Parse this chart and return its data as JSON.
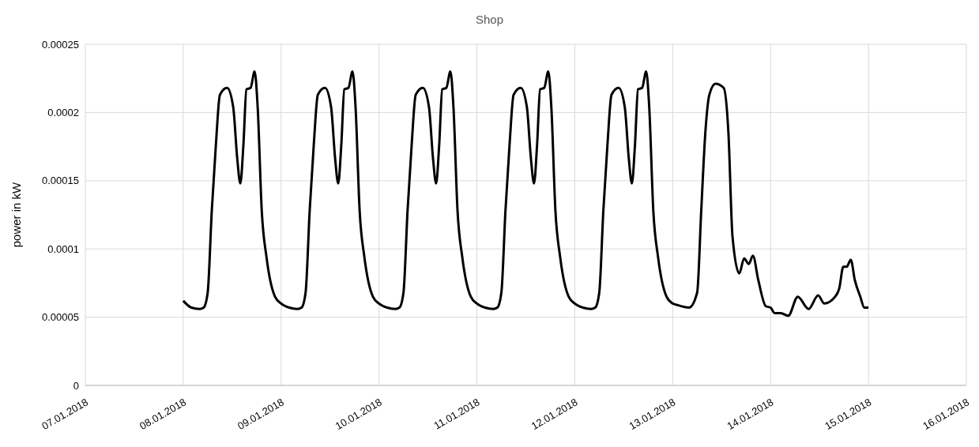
{
  "chart_data": {
    "type": "line",
    "title": "Shop",
    "ylabel": "power in kW",
    "x": [
      "2018-01-08T00:00",
      "2018-01-08T02:00",
      "2018-01-08T04:00",
      "2018-01-08T05:00",
      "2018-01-08T06:00",
      "2018-01-08T07:00",
      "2018-01-08T08:00",
      "2018-01-08T09:00",
      "2018-01-08T10:45",
      "2018-01-08T12:15",
      "2018-01-08T13:15",
      "2018-01-08T14:00",
      "2018-01-08T14:45",
      "2018-01-08T15:30",
      "2018-01-08T16:30",
      "2018-01-08T17:30",
      "2018-01-08T18:15",
      "2018-01-08T19:15",
      "2018-01-08T20:25",
      "2018-01-08T22:30",
      "2018-01-09T00:00",
      "2018-01-09T02:00",
      "2018-01-09T04:00",
      "2018-01-09T05:00",
      "2018-01-09T06:00",
      "2018-01-09T07:00",
      "2018-01-09T08:00",
      "2018-01-09T09:00",
      "2018-01-09T10:45",
      "2018-01-09T12:15",
      "2018-01-09T13:15",
      "2018-01-09T14:00",
      "2018-01-09T14:45",
      "2018-01-09T15:30",
      "2018-01-09T16:30",
      "2018-01-09T17:30",
      "2018-01-09T18:15",
      "2018-01-09T19:15",
      "2018-01-09T20:25",
      "2018-01-09T22:30",
      "2018-01-10T00:00",
      "2018-01-10T02:00",
      "2018-01-10T04:00",
      "2018-01-10T05:00",
      "2018-01-10T06:00",
      "2018-01-10T07:00",
      "2018-01-10T08:00",
      "2018-01-10T09:00",
      "2018-01-10T10:45",
      "2018-01-10T12:15",
      "2018-01-10T13:15",
      "2018-01-10T14:00",
      "2018-01-10T14:45",
      "2018-01-10T15:30",
      "2018-01-10T16:30",
      "2018-01-10T17:30",
      "2018-01-10T18:15",
      "2018-01-10T19:15",
      "2018-01-10T20:25",
      "2018-01-10T22:30",
      "2018-01-11T00:00",
      "2018-01-11T02:00",
      "2018-01-11T04:00",
      "2018-01-11T05:00",
      "2018-01-11T06:00",
      "2018-01-11T07:00",
      "2018-01-11T08:00",
      "2018-01-11T09:00",
      "2018-01-11T10:45",
      "2018-01-11T12:15",
      "2018-01-11T13:15",
      "2018-01-11T14:00",
      "2018-01-11T14:45",
      "2018-01-11T15:30",
      "2018-01-11T16:30",
      "2018-01-11T17:30",
      "2018-01-11T18:15",
      "2018-01-11T19:15",
      "2018-01-11T20:25",
      "2018-01-11T22:30",
      "2018-01-12T00:00",
      "2018-01-12T02:00",
      "2018-01-12T04:00",
      "2018-01-12T05:00",
      "2018-01-12T06:00",
      "2018-01-12T07:00",
      "2018-01-12T08:00",
      "2018-01-12T09:00",
      "2018-01-12T10:45",
      "2018-01-12T12:15",
      "2018-01-12T13:15",
      "2018-01-12T14:00",
      "2018-01-12T14:45",
      "2018-01-12T15:30",
      "2018-01-12T16:30",
      "2018-01-12T17:30",
      "2018-01-12T18:15",
      "2018-01-12T19:15",
      "2018-01-12T20:25",
      "2018-01-12T22:30",
      "2018-01-13T00:00",
      "2018-01-13T01:00",
      "2018-01-13T04:00",
      "2018-01-13T06:00",
      "2018-01-13T07:00",
      "2018-01-13T08:00",
      "2018-01-13T09:00",
      "2018-01-13T10:30",
      "2018-01-13T12:30",
      "2018-01-13T13:40",
      "2018-01-13T14:40",
      "2018-01-13T16:20",
      "2018-01-13T17:30",
      "2018-01-13T18:40",
      "2018-01-13T19:40",
      "2018-01-13T21:00",
      "2018-01-13T22:50",
      "2018-01-14T00:00",
      "2018-01-14T01:00",
      "2018-01-14T02:30",
      "2018-01-14T04:20",
      "2018-01-14T06:40",
      "2018-01-14T09:20",
      "2018-01-14T11:40",
      "2018-01-14T13:10",
      "2018-01-14T15:50",
      "2018-01-14T16:50",
      "2018-01-14T17:50",
      "2018-01-14T18:40",
      "2018-01-14T19:40",
      "2018-01-14T20:40",
      "2018-01-14T22:00",
      "2018-01-14T23:00",
      "2018-01-15T00:00"
    ],
    "series": [
      {
        "color": "#000000",
        "values": [
          6.2e-05,
          5.7e-05,
          5.6e-05,
          5.7e-05,
          6.8e-05,
          0.000128,
          0.000176,
          0.000213,
          0.000218,
          0.000204,
          0.000166,
          0.000148,
          0.000176,
          0.000217,
          0.000218,
          0.00023,
          0.000204,
          0.000128,
          9.4e-05,
          6.5e-05,
          6e-05,
          5.7e-05,
          5.6e-05,
          5.7e-05,
          6.8e-05,
          0.000128,
          0.000176,
          0.000213,
          0.000218,
          0.000204,
          0.000166,
          0.000148,
          0.000176,
          0.000217,
          0.000218,
          0.00023,
          0.000204,
          0.000128,
          9.4e-05,
          6.5e-05,
          6e-05,
          5.7e-05,
          5.6e-05,
          5.7e-05,
          6.8e-05,
          0.000128,
          0.000176,
          0.000213,
          0.000218,
          0.000204,
          0.000166,
          0.000148,
          0.000176,
          0.000217,
          0.000218,
          0.00023,
          0.000204,
          0.000128,
          9.4e-05,
          6.5e-05,
          6e-05,
          5.7e-05,
          5.6e-05,
          5.7e-05,
          6.8e-05,
          0.000128,
          0.000176,
          0.000213,
          0.000218,
          0.000204,
          0.000166,
          0.000148,
          0.000176,
          0.000217,
          0.000218,
          0.00023,
          0.000204,
          0.000128,
          9.4e-05,
          6.5e-05,
          6e-05,
          5.7e-05,
          5.6e-05,
          5.7e-05,
          6.8e-05,
          0.000128,
          0.000176,
          0.000213,
          0.000218,
          0.000204,
          0.000166,
          0.000148,
          0.000176,
          0.000217,
          0.000218,
          0.00023,
          0.000204,
          0.000128,
          9.4e-05,
          6.5e-05,
          6e-05,
          5.9e-05,
          5.7e-05,
          6.8e-05,
          0.000128,
          0.000185,
          0.000213,
          0.000221,
          0.000218,
          0.000185,
          0.000109,
          8.2e-05,
          9.3e-05,
          8.9e-05,
          9.5e-05,
          7.7e-05,
          5.8e-05,
          5.7e-05,
          5.3e-05,
          5.3e-05,
          5.1e-05,
          6.5e-05,
          5.6e-05,
          6.6e-05,
          6e-05,
          6.5e-05,
          7.1e-05,
          8.7e-05,
          8.7e-05,
          9.2e-05,
          7.7e-05,
          6.5e-05,
          5.7e-05,
          5.7e-05
        ]
      }
    ],
    "xlim": [
      "2018-01-07",
      "2018-01-16"
    ],
    "xticks": [
      {
        "value": "2018-01-07",
        "label": "07.01.2018"
      },
      {
        "value": "2018-01-08",
        "label": "08.01.2018"
      },
      {
        "value": "2018-01-09",
        "label": "09.01.2018"
      },
      {
        "value": "2018-01-10",
        "label": "10.01.2018"
      },
      {
        "value": "2018-01-11",
        "label": "11.01.2018"
      },
      {
        "value": "2018-01-12",
        "label": "12.01.2018"
      },
      {
        "value": "2018-01-13",
        "label": "13.01.2018"
      },
      {
        "value": "2018-01-14",
        "label": "14.01.2018"
      },
      {
        "value": "2018-01-15",
        "label": "15.01.2018"
      },
      {
        "value": "2018-01-16",
        "label": "16.01.2018"
      }
    ],
    "ylim": [
      0,
      0.00025
    ],
    "yticks": [
      0,
      {
        "value": 5e-05,
        "label": "0.00005"
      },
      0.0001,
      0.00015,
      0.0002,
      0.00025
    ],
    "grid": true,
    "legend": false,
    "marker": "none",
    "line_style": "solid"
  }
}
